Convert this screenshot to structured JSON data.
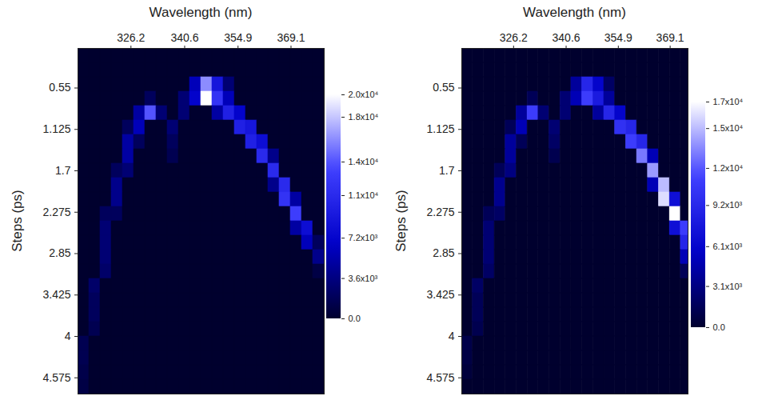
{
  "chart_data": [
    {
      "type": "heatmap",
      "xlabel": "Wavelength (nm)",
      "ylabel": "Steps (ps)",
      "xlim": [
        312,
        378
      ],
      "xticks": [
        326.2,
        340.6,
        354.9,
        369.1
      ],
      "ylim": [
        0,
        4.8
      ],
      "yticks": [
        0.55,
        1.125,
        1.7,
        2.275,
        2.85,
        3.425,
        4,
        4.575
      ],
      "x": [
        313.5,
        316.5,
        319.5,
        322.5,
        325.5,
        328.5,
        331.5,
        334.5,
        337.5,
        340.5,
        343.5,
        346.5,
        349.5,
        352.5,
        355.5,
        358.5,
        361.5,
        364.5,
        367.5,
        370.5,
        373.5,
        376.5
      ],
      "y": [
        0.1,
        0.3,
        0.5,
        0.7,
        0.9,
        1.1,
        1.3,
        1.5,
        1.7,
        1.9,
        2.1,
        2.3,
        2.5,
        2.7,
        2.9,
        3.1,
        3.3,
        3.5,
        3.7,
        3.9,
        4.1,
        4.3,
        4.5,
        4.7
      ],
      "values": [
        [
          0,
          0,
          0,
          0,
          0,
          0,
          0,
          0,
          0,
          0,
          0,
          0,
          0,
          0,
          0,
          0,
          0,
          0,
          0,
          0,
          0,
          0
        ],
        [
          0,
          0,
          0,
          0,
          0,
          0,
          0,
          0,
          0,
          0,
          0,
          0,
          0,
          0,
          0,
          0,
          0,
          0,
          0,
          0,
          0,
          0
        ],
        [
          0,
          0,
          0,
          0,
          0,
          0,
          0,
          0,
          0,
          0,
          6000,
          16000,
          9000,
          3000,
          0,
          0,
          0,
          0,
          0,
          0,
          0,
          0
        ],
        [
          0,
          0,
          0,
          0,
          0,
          0,
          2000,
          0,
          0,
          3000,
          7000,
          20000,
          12000,
          6000,
          0,
          0,
          0,
          0,
          0,
          0,
          0,
          0
        ],
        [
          0,
          0,
          0,
          0,
          0,
          5000,
          14000,
          3000,
          0,
          3000,
          0,
          0,
          5000,
          10000,
          7000,
          0,
          0,
          0,
          0,
          0,
          0,
          0
        ],
        [
          0,
          0,
          0,
          0,
          2000,
          6000,
          0,
          0,
          3000,
          0,
          0,
          0,
          0,
          0,
          10000,
          9000,
          0,
          0,
          0,
          0,
          0,
          0
        ],
        [
          0,
          0,
          0,
          0,
          5000,
          2000,
          0,
          0,
          2000,
          0,
          0,
          0,
          0,
          0,
          0,
          10000,
          8000,
          0,
          0,
          0,
          0,
          0
        ],
        [
          0,
          0,
          0,
          0,
          5000,
          0,
          0,
          0,
          1500,
          0,
          0,
          0,
          0,
          0,
          0,
          0,
          11000,
          4000,
          0,
          0,
          0,
          0
        ],
        [
          0,
          0,
          0,
          2000,
          3000,
          0,
          0,
          0,
          0,
          0,
          0,
          0,
          0,
          0,
          0,
          0,
          0,
          11000,
          0,
          0,
          0,
          0
        ],
        [
          0,
          0,
          0,
          4000,
          0,
          0,
          0,
          0,
          0,
          0,
          0,
          0,
          0,
          0,
          0,
          0,
          0,
          4000,
          11000,
          0,
          0,
          0
        ],
        [
          0,
          0,
          0,
          4000,
          0,
          0,
          0,
          0,
          0,
          0,
          0,
          0,
          0,
          0,
          0,
          0,
          0,
          0,
          12000,
          5000,
          0,
          0
        ],
        [
          0,
          0,
          2000,
          2000,
          0,
          0,
          0,
          0,
          0,
          0,
          0,
          0,
          0,
          0,
          0,
          0,
          0,
          0,
          0,
          13000,
          0,
          0
        ],
        [
          0,
          0,
          3000,
          0,
          0,
          0,
          0,
          0,
          0,
          0,
          0,
          0,
          0,
          0,
          0,
          0,
          0,
          0,
          0,
          5000,
          8000,
          0
        ],
        [
          0,
          0,
          3000,
          0,
          0,
          0,
          0,
          0,
          0,
          0,
          0,
          0,
          0,
          0,
          0,
          0,
          0,
          0,
          0,
          0,
          6000,
          2000
        ],
        [
          0,
          0,
          3000,
          0,
          0,
          0,
          0,
          0,
          0,
          0,
          0,
          0,
          0,
          0,
          0,
          0,
          0,
          0,
          0,
          0,
          0,
          4000
        ],
        [
          0,
          0,
          2500,
          0,
          0,
          0,
          0,
          0,
          0,
          0,
          0,
          0,
          0,
          0,
          0,
          0,
          0,
          0,
          0,
          0,
          0,
          1000
        ],
        [
          0,
          2500,
          0,
          0,
          0,
          0,
          0,
          0,
          0,
          0,
          0,
          0,
          0,
          0,
          0,
          0,
          0,
          0,
          0,
          0,
          0,
          0
        ],
        [
          0,
          2000,
          0,
          0,
          0,
          0,
          0,
          0,
          0,
          0,
          0,
          0,
          0,
          0,
          0,
          0,
          0,
          0,
          0,
          0,
          0,
          0
        ],
        [
          0,
          2000,
          0,
          0,
          0,
          0,
          0,
          0,
          0,
          0,
          0,
          0,
          0,
          0,
          0,
          0,
          0,
          0,
          0,
          0,
          0,
          0
        ],
        [
          0,
          1500,
          0,
          0,
          0,
          0,
          0,
          0,
          0,
          0,
          0,
          0,
          0,
          0,
          0,
          0,
          0,
          0,
          0,
          0,
          0,
          0
        ],
        [
          1500,
          0,
          0,
          0,
          0,
          0,
          0,
          0,
          0,
          0,
          0,
          0,
          0,
          0,
          0,
          0,
          0,
          0,
          0,
          0,
          0,
          0
        ],
        [
          1500,
          0,
          0,
          0,
          0,
          0,
          0,
          0,
          0,
          0,
          0,
          0,
          0,
          0,
          0,
          0,
          0,
          0,
          0,
          0,
          0,
          0
        ],
        [
          1200,
          0,
          0,
          0,
          0,
          0,
          0,
          0,
          0,
          0,
          0,
          0,
          0,
          0,
          0,
          0,
          0,
          0,
          0,
          0,
          0,
          0
        ],
        [
          1000,
          0,
          0,
          0,
          0,
          0,
          0,
          0,
          0,
          0,
          0,
          0,
          0,
          0,
          0,
          0,
          0,
          0,
          0,
          0,
          0,
          0
        ]
      ],
      "colorbar_range": [
        0,
        20000
      ],
      "colorbar_ticks": [
        {
          "value": 0,
          "label": "0.0"
        },
        {
          "value": 3600,
          "label": "3.6x10³"
        },
        {
          "value": 7200,
          "label": "7.2x10³"
        },
        {
          "value": 11000,
          "label": "1.1x10⁴"
        },
        {
          "value": 14000,
          "label": "1.4x10⁴"
        },
        {
          "value": 18000,
          "label": "1.8x10⁴"
        },
        {
          "value": 20000,
          "label": "2.0x10⁴"
        }
      ]
    },
    {
      "type": "heatmap",
      "xlabel": "Wavelength (nm)",
      "ylabel": "Steps (ps)",
      "xlim": [
        312,
        374
      ],
      "xticks": [
        326.2,
        340.6,
        354.9,
        369.1
      ],
      "ylim": [
        0,
        4.8
      ],
      "yticks": [
        0.55,
        1.125,
        1.7,
        2.275,
        2.85,
        3.425,
        4,
        4.575
      ],
      "x": [
        313.5,
        316.5,
        319.5,
        322.5,
        325.5,
        328.5,
        331.5,
        334.5,
        337.5,
        340.5,
        343.5,
        346.5,
        349.5,
        352.5,
        355.5,
        358.5,
        361.5,
        364.5,
        367.5,
        370.5,
        373.5
      ],
      "y": [
        0.1,
        0.3,
        0.5,
        0.7,
        0.9,
        1.1,
        1.3,
        1.5,
        1.7,
        1.9,
        2.1,
        2.3,
        2.5,
        2.7,
        2.9,
        3.1,
        3.3,
        3.5,
        3.7,
        3.9,
        4.1,
        4.3,
        4.5,
        4.7
      ],
      "values": [
        [
          0,
          0,
          0,
          0,
          0,
          0,
          0,
          0,
          0,
          0,
          0,
          0,
          0,
          0,
          0,
          0,
          0,
          0,
          0,
          0,
          0
        ],
        [
          0,
          0,
          0,
          0,
          0,
          0,
          0,
          0,
          0,
          0,
          0,
          0,
          0,
          0,
          0,
          0,
          0,
          0,
          0,
          0,
          0
        ],
        [
          0,
          0,
          0,
          0,
          0,
          0,
          0,
          0,
          0,
          0,
          4000,
          9000,
          6000,
          2000,
          0,
          0,
          0,
          0,
          0,
          0,
          0
        ],
        [
          0,
          0,
          0,
          0,
          0,
          0,
          1500,
          0,
          0,
          2500,
          5000,
          11000,
          8000,
          4000,
          0,
          0,
          0,
          0,
          0,
          0,
          0
        ],
        [
          0,
          0,
          0,
          0,
          0,
          4000,
          11000,
          2500,
          0,
          2500,
          0,
          0,
          4000,
          9000,
          6000,
          0,
          0,
          0,
          0,
          0,
          0
        ],
        [
          0,
          0,
          0,
          0,
          1500,
          5000,
          0,
          0,
          2500,
          0,
          0,
          0,
          0,
          0,
          10000,
          9000,
          0,
          0,
          0,
          0,
          0
        ],
        [
          0,
          0,
          0,
          0,
          4000,
          1500,
          0,
          0,
          2000,
          0,
          0,
          0,
          0,
          0,
          0,
          11000,
          9000,
          0,
          0,
          0,
          0
        ],
        [
          0,
          0,
          0,
          0,
          4000,
          0,
          0,
          0,
          1200,
          0,
          0,
          0,
          0,
          0,
          0,
          0,
          13000,
          5000,
          0,
          0,
          0
        ],
        [
          0,
          0,
          0,
          1500,
          3000,
          0,
          0,
          0,
          0,
          0,
          0,
          0,
          0,
          0,
          0,
          0,
          0,
          14000,
          0,
          0,
          0
        ],
        [
          0,
          0,
          0,
          3500,
          0,
          0,
          0,
          0,
          0,
          0,
          0,
          0,
          0,
          0,
          0,
          0,
          0,
          5000,
          15000,
          0,
          0
        ],
        [
          0,
          0,
          0,
          3500,
          0,
          0,
          0,
          0,
          0,
          0,
          0,
          0,
          0,
          0,
          0,
          0,
          0,
          0,
          16000,
          7000,
          0
        ],
        [
          0,
          0,
          1500,
          2000,
          0,
          0,
          0,
          0,
          0,
          0,
          0,
          0,
          0,
          0,
          0,
          0,
          0,
          0,
          0,
          17000,
          0
        ],
        [
          0,
          0,
          2500,
          0,
          0,
          0,
          0,
          0,
          0,
          0,
          0,
          0,
          0,
          0,
          0,
          0,
          0,
          0,
          0,
          7000,
          11000
        ],
        [
          0,
          0,
          2500,
          0,
          0,
          0,
          0,
          0,
          0,
          0,
          0,
          0,
          0,
          0,
          0,
          0,
          0,
          0,
          0,
          0,
          9000
        ],
        [
          0,
          0,
          2500,
          0,
          0,
          0,
          0,
          0,
          0,
          0,
          0,
          0,
          0,
          0,
          0,
          0,
          0,
          0,
          0,
          0,
          5000
        ],
        [
          0,
          0,
          2000,
          0,
          0,
          0,
          0,
          0,
          0,
          0,
          0,
          0,
          0,
          0,
          0,
          0,
          0,
          0,
          0,
          0,
          1500
        ],
        [
          0,
          2000,
          0,
          0,
          0,
          0,
          0,
          0,
          0,
          0,
          0,
          0,
          0,
          0,
          0,
          0,
          0,
          0,
          0,
          0,
          0
        ],
        [
          0,
          1500,
          0,
          0,
          0,
          0,
          0,
          0,
          0,
          0,
          0,
          0,
          0,
          0,
          0,
          0,
          0,
          0,
          0,
          0,
          0
        ],
        [
          0,
          1500,
          0,
          0,
          0,
          0,
          0,
          0,
          0,
          0,
          0,
          0,
          0,
          0,
          0,
          0,
          0,
          0,
          0,
          0,
          0
        ],
        [
          0,
          1200,
          0,
          0,
          0,
          0,
          0,
          0,
          0,
          0,
          0,
          0,
          0,
          0,
          0,
          0,
          0,
          0,
          0,
          0,
          0
        ],
        [
          1000,
          0,
          0,
          0,
          0,
          0,
          0,
          0,
          0,
          0,
          0,
          0,
          0,
          0,
          0,
          0,
          0,
          0,
          0,
          0,
          0
        ],
        [
          800,
          0,
          0,
          0,
          0,
          0,
          0,
          0,
          0,
          0,
          0,
          0,
          0,
          0,
          0,
          0,
          0,
          0,
          0,
          0,
          0
        ],
        [
          500,
          0,
          0,
          0,
          0,
          0,
          0,
          0,
          0,
          0,
          0,
          0,
          0,
          0,
          0,
          0,
          0,
          0,
          0,
          0,
          0
        ],
        [
          0,
          0,
          0,
          0,
          0,
          0,
          0,
          0,
          0,
          0,
          0,
          0,
          0,
          0,
          0,
          0,
          0,
          0,
          0,
          0,
          0
        ]
      ],
      "colorbar_range": [
        0,
        17000
      ],
      "colorbar_ticks": [
        {
          "value": 0,
          "label": "0.0"
        },
        {
          "value": 3100,
          "label": "3.1x10³"
        },
        {
          "value": 6100,
          "label": "6.1x10³"
        },
        {
          "value": 9200,
          "label": "9.2x10³"
        },
        {
          "value": 12000,
          "label": "1.2x10⁴"
        },
        {
          "value": 15000,
          "label": "1.5x10⁴"
        },
        {
          "value": 17000,
          "label": "1.7x10⁴"
        }
      ]
    }
  ]
}
